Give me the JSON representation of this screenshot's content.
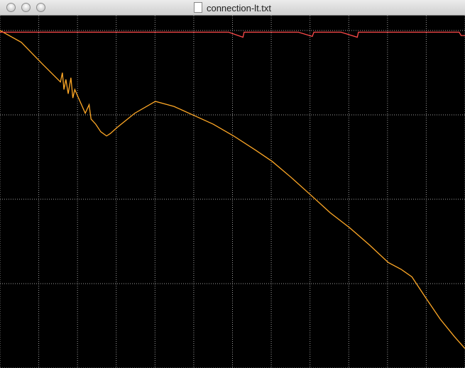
{
  "window": {
    "title": "connection-lt.txt"
  },
  "chart_data": {
    "type": "line",
    "xlim": [
      0,
      12
    ],
    "xticks": [
      0,
      1,
      2,
      3,
      4,
      5,
      6,
      7,
      8,
      9,
      10,
      11,
      12
    ],
    "ylim": [
      0,
      4
    ],
    "yticks": [
      0,
      1,
      2,
      3,
      4
    ],
    "grid": true,
    "series": [
      {
        "color": "#ffa826",
        "x": [
          0,
          0.55,
          1.1,
          1.56,
          1.61,
          1.65,
          1.7,
          1.76,
          1.83,
          1.88,
          1.93,
          2.2,
          2.3,
          2.35,
          2.47,
          2.6,
          2.75,
          2.85,
          3.02,
          3.48,
          4.01,
          4.49,
          5.02,
          5.5,
          6.03,
          6.6,
          7.02,
          7.51,
          8.02,
          8.52,
          9.03,
          9.53,
          10.02,
          10.35,
          10.63,
          10.99,
          11.36,
          11.73,
          12
        ],
        "values": [
          4.0,
          3.86,
          3.6,
          3.39,
          3.5,
          3.3,
          3.42,
          3.25,
          3.44,
          3.2,
          3.3,
          3.02,
          3.12,
          2.95,
          2.89,
          2.8,
          2.75,
          2.78,
          2.85,
          3.02,
          3.16,
          3.1,
          2.99,
          2.89,
          2.75,
          2.58,
          2.45,
          2.26,
          2.05,
          1.84,
          1.66,
          1.46,
          1.25,
          1.17,
          1.08,
          0.83,
          0.58,
          0.37,
          0.23
        ]
      },
      {
        "color": "#ff4a4a",
        "x": [
          0,
          5.9,
          6.27,
          6.3,
          7.7,
          8.06,
          8.1,
          8.8,
          9.22,
          9.25,
          11.85,
          11.9,
          12
        ],
        "values": [
          3.98,
          3.98,
          3.92,
          3.98,
          3.98,
          3.93,
          3.98,
          3.98,
          3.92,
          3.98,
          3.98,
          3.94,
          3.94
        ]
      }
    ]
  }
}
